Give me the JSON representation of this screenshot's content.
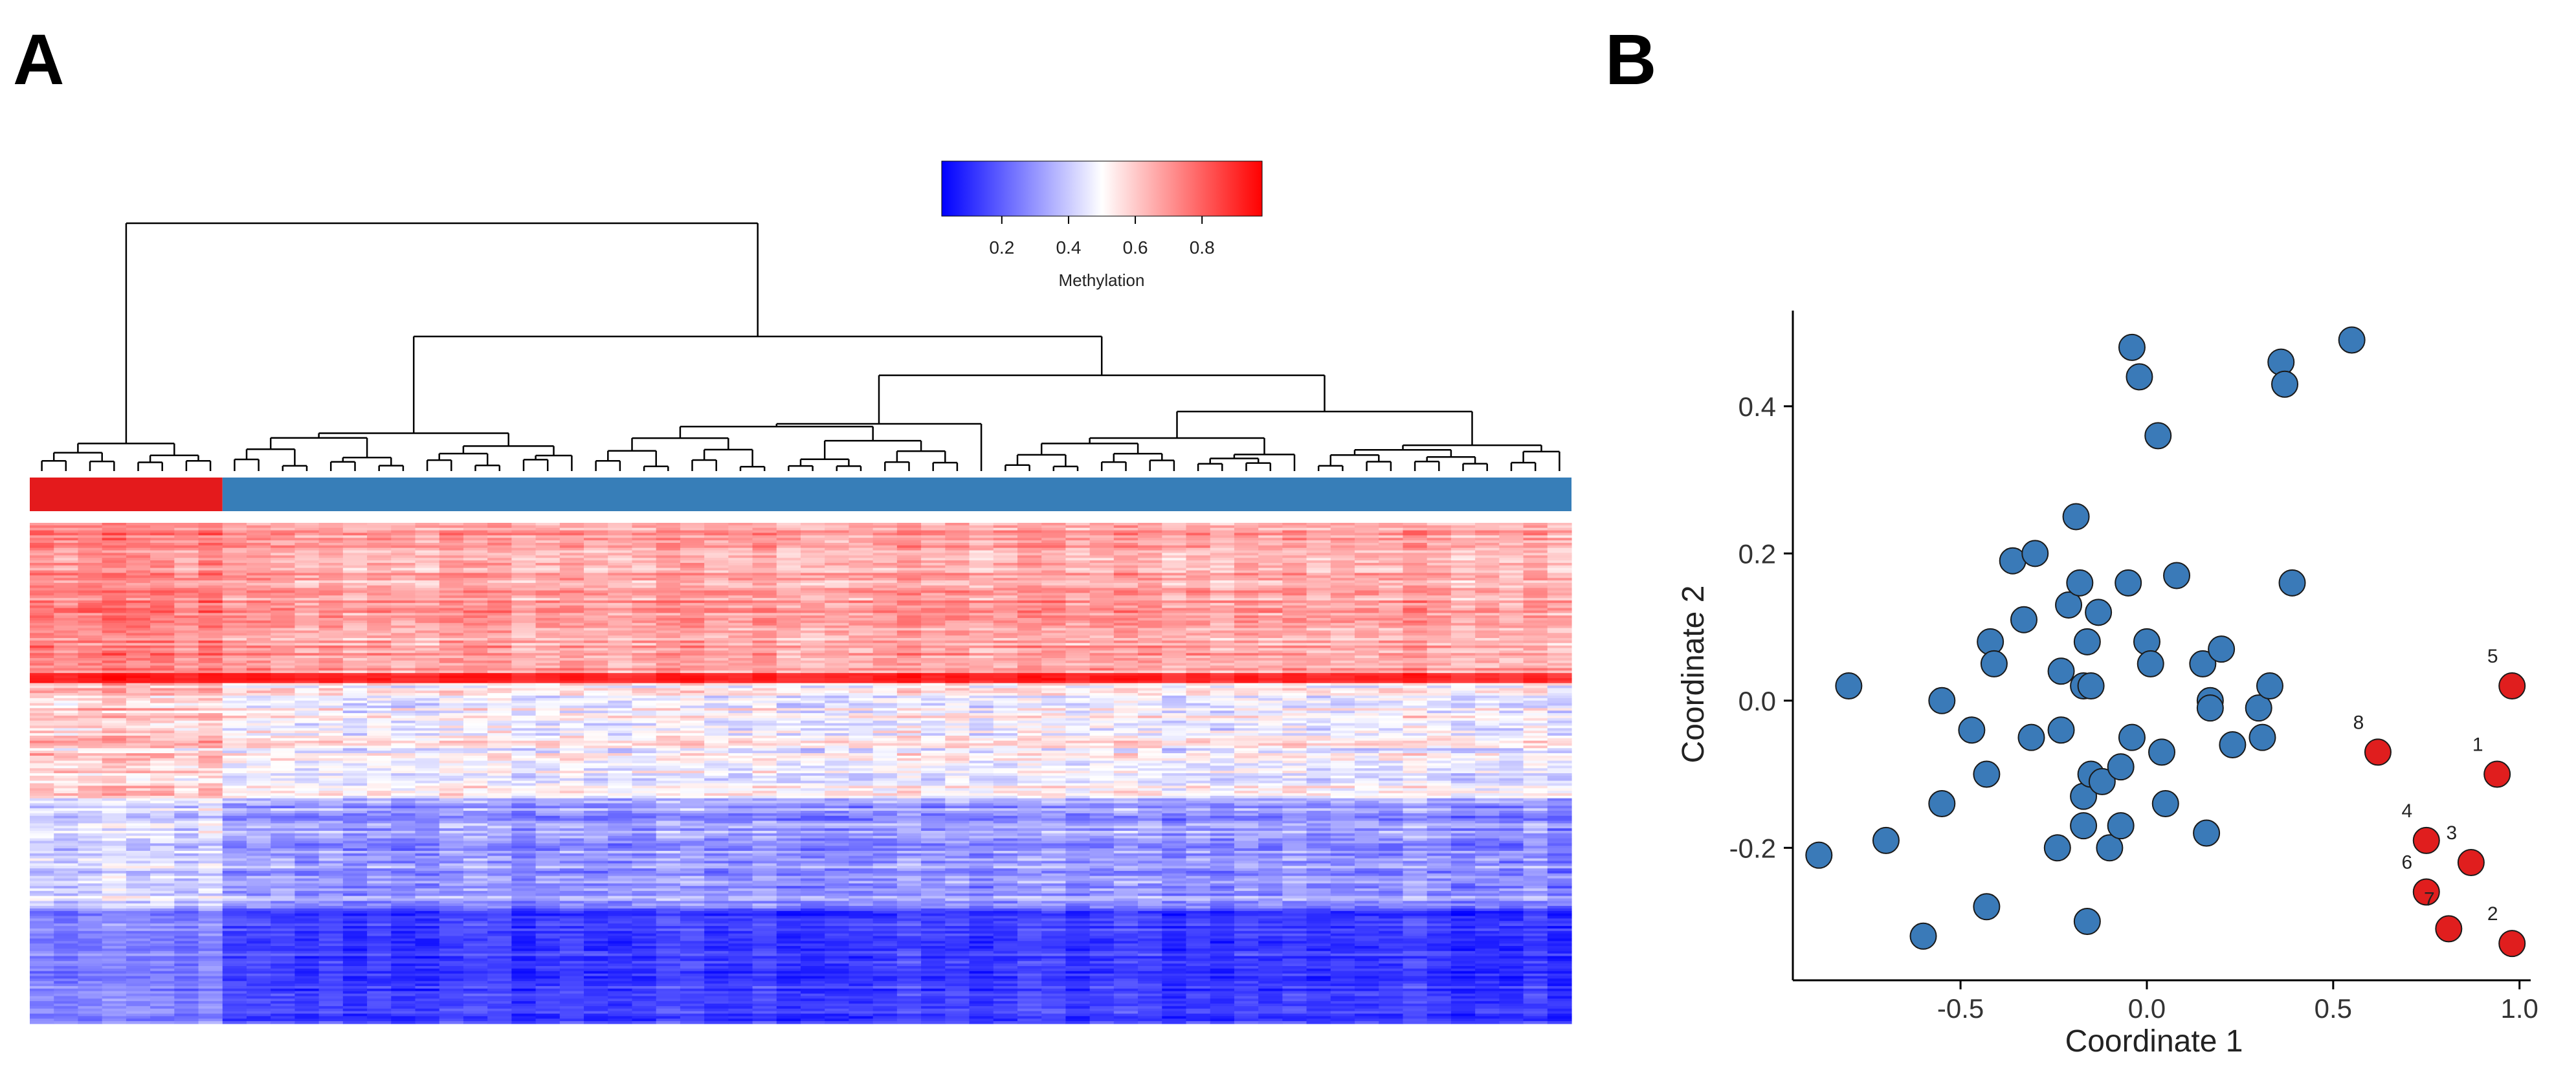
{
  "panels": {
    "a_label": "A",
    "b_label": "B"
  },
  "colors": {
    "low": "#0000ff",
    "mid": "#ffffff",
    "high": "#ff0000",
    "group_red": "#e41a1c",
    "group_blue": "#377eb8",
    "point_blue": "#3a7ab8",
    "point_red": "#e01e1e"
  },
  "chart_data": [
    {
      "type": "heatmap",
      "title": "",
      "legend": {
        "title": "Methylation",
        "ticks": [
          "0.2",
          "0.4",
          "0.6",
          "0.8"
        ],
        "tick_values": [
          0.2,
          0.4,
          0.6,
          0.8
        ],
        "range": [
          0.02,
          0.98
        ]
      },
      "groups": [
        {
          "name": "red",
          "color": "#e41a1c",
          "count": 8
        },
        {
          "name": "blue",
          "color": "#377eb8",
          "count": 56
        }
      ],
      "n_samples": 64,
      "row_blocks": [
        {
          "rows": 60,
          "mean_red": 0.74,
          "mean_blue": 0.68,
          "spread": 0.14
        },
        {
          "rows": 4,
          "mean_red": 0.93,
          "mean_blue": 0.92,
          "spread": 0.05
        },
        {
          "rows": 46,
          "mean_red": 0.6,
          "mean_blue": 0.5,
          "spread": 0.17
        },
        {
          "rows": 44,
          "mean_red": 0.42,
          "mean_blue": 0.3,
          "spread": 0.15
        },
        {
          "rows": 46,
          "mean_red": 0.25,
          "mean_blue": 0.12,
          "spread": 0.1
        }
      ]
    },
    {
      "type": "scatter",
      "xlabel": "Coordinate 1",
      "ylabel": "Coordinate 2",
      "xlim": [
        -0.95,
        1.03
      ],
      "ylim": [
        -0.38,
        0.53
      ],
      "xticks": [
        -0.5,
        0.0,
        0.5,
        1.0
      ],
      "xtick_labels": [
        "-0.5",
        "0.0",
        "0.5",
        "1.0"
      ],
      "yticks": [
        -0.2,
        0.0,
        0.2,
        0.4
      ],
      "ytick_labels": [
        "-0.2",
        "0.0",
        "0.2",
        "0.4"
      ],
      "series": [
        {
          "name": "blue",
          "color": "#3a7ab8",
          "labels": [],
          "points": [
            [
              -0.88,
              -0.21
            ],
            [
              -0.8,
              0.02
            ],
            [
              -0.7,
              -0.19
            ],
            [
              -0.6,
              -0.32
            ],
            [
              -0.55,
              0.0
            ],
            [
              -0.55,
              -0.14
            ],
            [
              -0.47,
              -0.04
            ],
            [
              -0.43,
              -0.1
            ],
            [
              -0.43,
              -0.28
            ],
            [
              -0.42,
              0.08
            ],
            [
              -0.41,
              0.05
            ],
            [
              -0.36,
              0.19
            ],
            [
              -0.33,
              0.11
            ],
            [
              -0.31,
              -0.05
            ],
            [
              -0.3,
              0.2
            ],
            [
              -0.24,
              -0.2
            ],
            [
              -0.23,
              0.04
            ],
            [
              -0.23,
              -0.04
            ],
            [
              -0.21,
              0.13
            ],
            [
              -0.19,
              0.25
            ],
            [
              -0.18,
              0.16
            ],
            [
              -0.17,
              0.02
            ],
            [
              -0.17,
              -0.13
            ],
            [
              -0.17,
              -0.17
            ],
            [
              -0.16,
              -0.3
            ],
            [
              -0.16,
              0.08
            ],
            [
              -0.15,
              -0.1
            ],
            [
              -0.15,
              0.02
            ],
            [
              -0.13,
              0.12
            ],
            [
              -0.12,
              -0.11
            ],
            [
              -0.1,
              -0.2
            ],
            [
              -0.07,
              -0.17
            ],
            [
              -0.07,
              -0.09
            ],
            [
              -0.05,
              0.16
            ],
            [
              -0.04,
              -0.05
            ],
            [
              -0.04,
              0.48
            ],
            [
              -0.02,
              0.44
            ],
            [
              0.0,
              0.08
            ],
            [
              0.01,
              0.05
            ],
            [
              0.03,
              0.36
            ],
            [
              0.04,
              -0.07
            ],
            [
              0.05,
              -0.14
            ],
            [
              0.08,
              0.17
            ],
            [
              0.15,
              0.05
            ],
            [
              0.16,
              -0.18
            ],
            [
              0.17,
              0.0
            ],
            [
              0.17,
              -0.01
            ],
            [
              0.2,
              0.07
            ],
            [
              0.23,
              -0.06
            ],
            [
              0.3,
              -0.01
            ],
            [
              0.31,
              -0.05
            ],
            [
              0.33,
              0.02
            ],
            [
              0.36,
              0.46
            ],
            [
              0.37,
              0.43
            ],
            [
              0.39,
              0.16
            ],
            [
              0.55,
              0.49
            ]
          ]
        },
        {
          "name": "red",
          "color": "#e01e1e",
          "labels": [
            "1",
            "2",
            "3",
            "4",
            "5",
            "6",
            "7",
            "8"
          ],
          "points": [
            [
              0.94,
              -0.1
            ],
            [
              0.98,
              -0.33
            ],
            [
              0.87,
              -0.22
            ],
            [
              0.75,
              -0.19
            ],
            [
              0.98,
              0.02
            ],
            [
              0.75,
              -0.26
            ],
            [
              0.81,
              -0.31
            ],
            [
              0.62,
              -0.07
            ]
          ]
        }
      ]
    }
  ]
}
